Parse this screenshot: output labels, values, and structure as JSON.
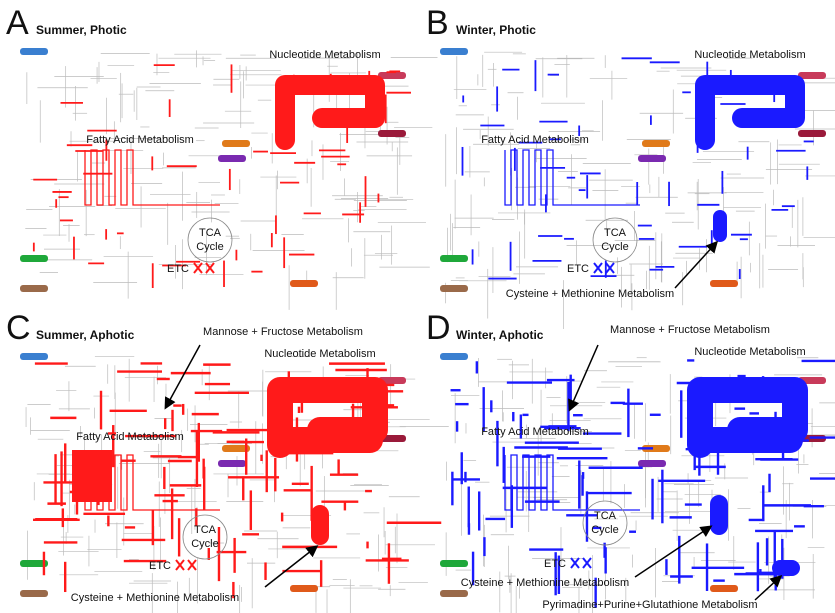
{
  "panels": [
    {
      "letter": "A",
      "title": "Summer, Photic",
      "color": "#ff1a1a",
      "labels": {
        "nucleotide": "Nucleotide Metabolism",
        "fatty_acid": "Fatty Acid Metabolism",
        "tca": [
          "TCA",
          "Cycle"
        ],
        "etc": "ETC"
      }
    },
    {
      "letter": "B",
      "title": "Winter, Photic",
      "color": "#1a1aff",
      "labels": {
        "nucleotide": "Nucleotide Metabolism",
        "fatty_acid": "Fatty Acid Metabolism",
        "tca": [
          "TCA",
          "Cycle"
        ],
        "etc": "ETC",
        "cysteine": "Cysteine + Methionine Metabolism"
      }
    },
    {
      "letter": "C",
      "title": "Summer, Aphotic",
      "color": "#ff1a1a",
      "labels": {
        "mannose": "Mannose + Fructose Metabolism",
        "nucleotide": "Nucleotide Metabolism",
        "fatty_acid": "Fatty Acid Metabolism",
        "tca": [
          "TCA",
          "Cycle"
        ],
        "etc": "ETC",
        "cysteine": "Cysteine + Methionine Metabolism"
      }
    },
    {
      "letter": "D",
      "title": "Winter, Aphotic",
      "color": "#1a1aff",
      "labels": {
        "mannose": "Mannose + Fructose Metabolism",
        "nucleotide": "Nucleotide Metabolism",
        "fatty_acid": "Fatty Acid Metabolism",
        "tca": [
          "TCA",
          "Cycle"
        ],
        "etc": "ETC",
        "cysteine": "Cysteine + Methionine Metabolism",
        "pyrimidine": "Pyrimadine+Purine+Glutathione Metabolism"
      }
    }
  ]
}
